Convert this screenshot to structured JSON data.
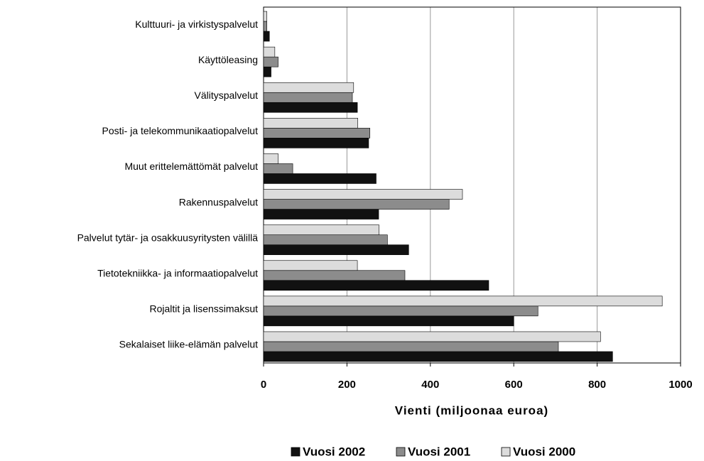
{
  "chart_data": {
    "type": "hbar",
    "xlabel": "Vienti (miljoonaa euroa)",
    "categories": [
      "Kulttuuri- ja virkistyspalvelut",
      "Käyttöleasing",
      "Välityspalvelut",
      "Posti- ja telekommunikaatiopalvelut",
      "Muut erittelemättömät palvelut",
      "Rakennuspalvelut",
      "Palvelut tytär- ja osakkuusyritysten välillä",
      "Tietotekniikka- ja informaatiopalvelut",
      "Rojaltit ja lisenssimaksut",
      "Sekalaiset liike-elämän palvelut"
    ],
    "series": [
      {
        "name": "Vuosi 2002",
        "color": "#111111",
        "values": [
          14,
          18,
          225,
          252,
          270,
          276,
          348,
          540,
          600,
          837
        ]
      },
      {
        "name": "Vuosi 2001",
        "color": "#8c8c8c",
        "values": [
          8,
          35,
          213,
          255,
          70,
          445,
          297,
          339,
          658,
          707
        ]
      },
      {
        "name": "Vuosi 2000",
        "color": "#dcdcdc",
        "values": [
          8,
          27,
          216,
          226,
          35,
          477,
          277,
          225,
          956,
          808
        ]
      }
    ],
    "xlim": [
      0,
      1000
    ],
    "xticks": [
      0,
      200,
      400,
      600,
      800,
      1000
    ],
    "grid": true
  }
}
